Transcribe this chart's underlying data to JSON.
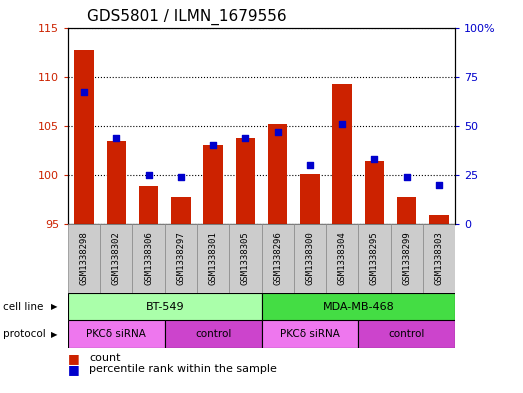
{
  "title": "GDS5801 / ILMN_1679556",
  "samples": [
    "GSM1338298",
    "GSM1338302",
    "GSM1338306",
    "GSM1338297",
    "GSM1338301",
    "GSM1338305",
    "GSM1338296",
    "GSM1338300",
    "GSM1338304",
    "GSM1338295",
    "GSM1338299",
    "GSM1338303"
  ],
  "counts": [
    112.7,
    103.4,
    98.9,
    97.7,
    103.0,
    103.8,
    105.2,
    100.1,
    109.3,
    101.4,
    97.8,
    95.9
  ],
  "percentiles": [
    67,
    44,
    25,
    24,
    40,
    44,
    47,
    30,
    51,
    33,
    24,
    20
  ],
  "ylim_left": [
    95,
    115
  ],
  "ylim_right": [
    0,
    100
  ],
  "yticks_left": [
    95,
    100,
    105,
    110,
    115
  ],
  "yticks_right": [
    0,
    25,
    50,
    75,
    100
  ],
  "bar_color": "#cc2200",
  "dot_color": "#0000cc",
  "cell_line_colors": [
    "#aaffaa",
    "#44dd44"
  ],
  "protocol_colors_even": "#ee77ee",
  "protocol_colors_odd": "#cc44cc",
  "bg_color": "#ffffff"
}
